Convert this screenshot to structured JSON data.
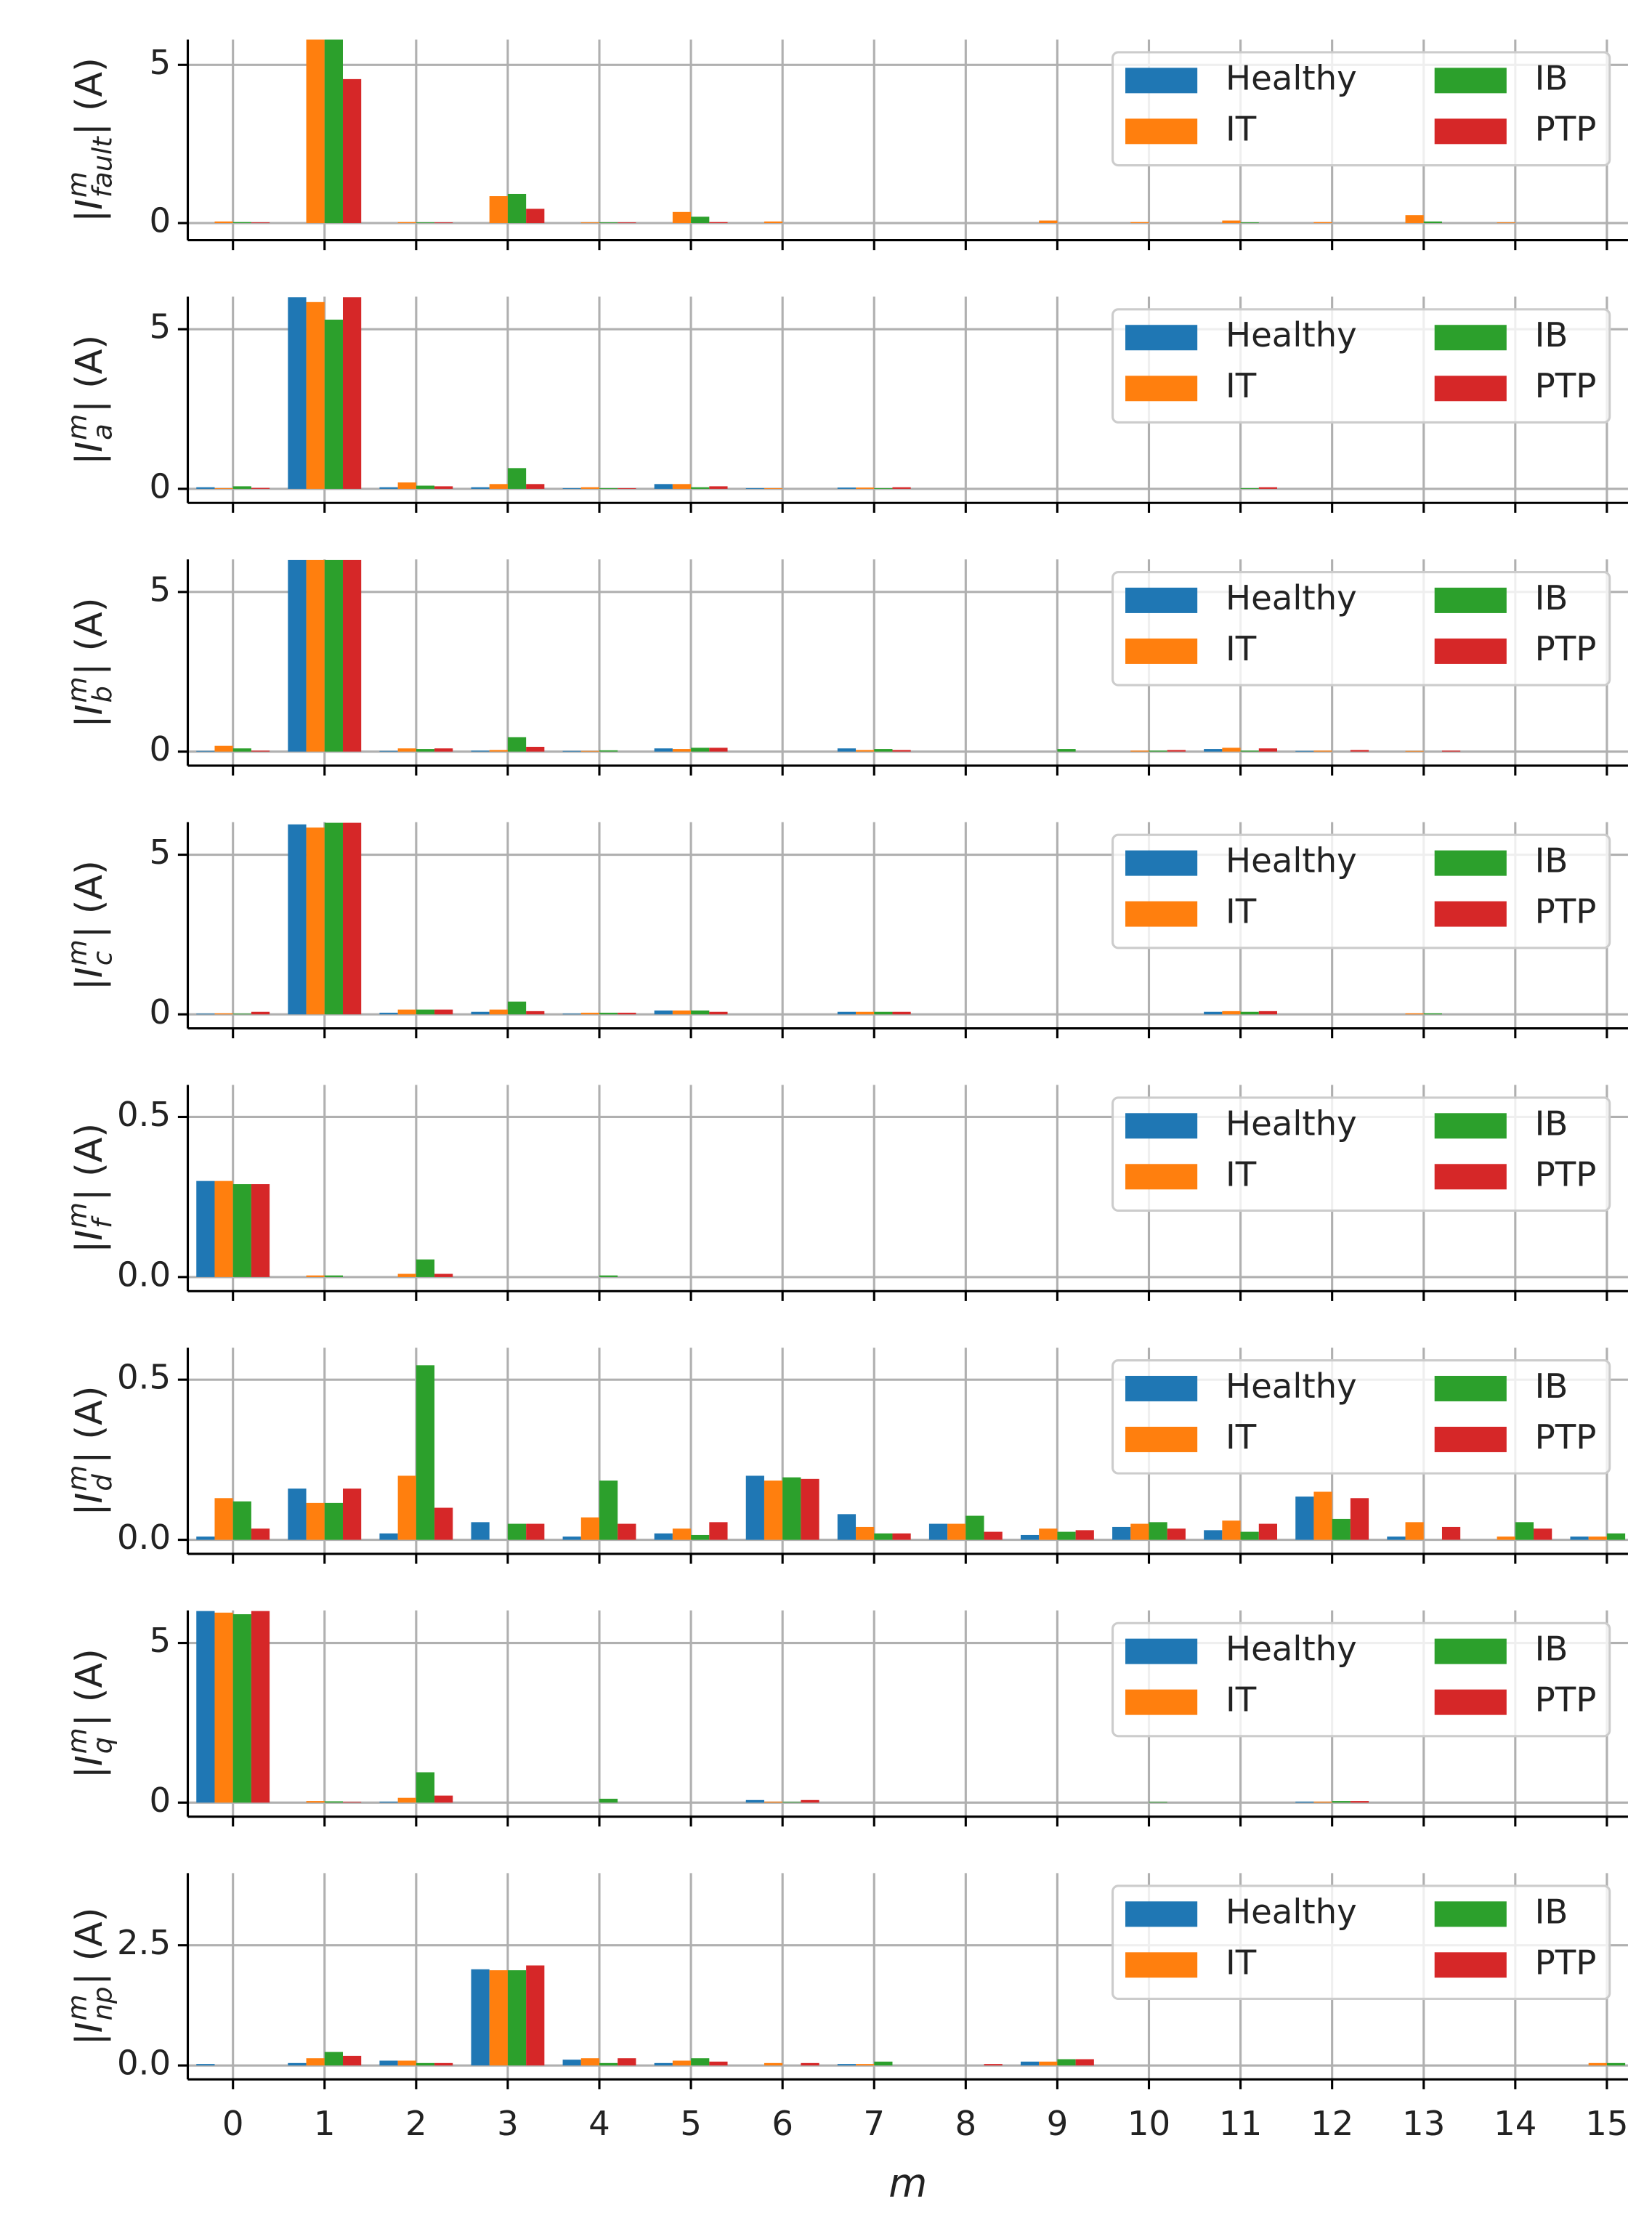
{
  "chart_data": [
    {
      "type": "bar",
      "ylabel": {
        "pre": "|",
        "sym": "I",
        "sup": "m",
        "sub": "fault",
        "post": "| (A)"
      },
      "ylim": [
        -0.54,
        5.8
      ],
      "yticks": [
        0,
        5
      ],
      "grid": true,
      "legend": "upper right",
      "series": [
        {
          "name": "Healthy",
          "color": "#1f77b4",
          "values": [
            0,
            0,
            0,
            0,
            0,
            0,
            0,
            0,
            0,
            0,
            0,
            0,
            0,
            0,
            0,
            0
          ]
        },
        {
          "name": "IT",
          "color": "#ff7f0e",
          "values": [
            0.05,
            6,
            0.03,
            0.85,
            0.02,
            0.35,
            0.05,
            0,
            0,
            0.08,
            0.03,
            0.08,
            0.03,
            0.25,
            0.02,
            0
          ]
        },
        {
          "name": "IB",
          "color": "#2ca02c",
          "values": [
            0.03,
            6,
            0.02,
            0.92,
            0.02,
            0.2,
            0,
            0,
            0,
            0,
            0,
            0.02,
            0,
            0.05,
            0,
            0
          ]
        },
        {
          "name": "PTP",
          "color": "#d62728",
          "values": [
            0.02,
            4.55,
            0.02,
            0.45,
            0.02,
            0.03,
            0,
            0,
            0,
            0,
            0,
            0,
            0,
            0,
            0,
            0
          ]
        }
      ]
    },
    {
      "type": "bar",
      "ylabel": {
        "pre": "|",
        "sym": "I",
        "sup": "m",
        "sub": "a",
        "post": "| (A)"
      },
      "ylim": [
        -0.44,
        6.02
      ],
      "yticks": [
        0,
        5
      ],
      "grid": true,
      "legend": "upper right",
      "series": [
        {
          "name": "Healthy",
          "color": "#1f77b4",
          "values": [
            0.05,
            6,
            0.05,
            0.05,
            0.02,
            0.15,
            0.02,
            0.04,
            0,
            0,
            0,
            0,
            0,
            0,
            0,
            0
          ]
        },
        {
          "name": "IT",
          "color": "#ff7f0e",
          "values": [
            0.02,
            5.85,
            0.2,
            0.15,
            0.05,
            0.15,
            0.02,
            0.04,
            0,
            0,
            0,
            0,
            0,
            0,
            0,
            0
          ]
        },
        {
          "name": "IB",
          "color": "#2ca02c",
          "values": [
            0.08,
            5.3,
            0.1,
            0.65,
            0.02,
            0.05,
            0,
            0.02,
            0,
            0,
            0,
            0.02,
            0,
            0,
            0,
            0
          ]
        },
        {
          "name": "PTP",
          "color": "#d62728",
          "values": [
            0.03,
            6,
            0.08,
            0.15,
            0.02,
            0.08,
            0,
            0.05,
            0,
            0,
            0,
            0.05,
            0,
            0,
            0,
            0
          ]
        }
      ]
    },
    {
      "type": "bar",
      "ylabel": {
        "pre": "|",
        "sym": "I",
        "sup": "m",
        "sub": "b",
        "post": "| (A)"
      },
      "ylim": [
        -0.44,
        6.02
      ],
      "yticks": [
        0,
        5
      ],
      "grid": true,
      "legend": "upper right",
      "series": [
        {
          "name": "Healthy",
          "color": "#1f77b4",
          "values": [
            0.02,
            6,
            0.02,
            0.03,
            0.02,
            0.1,
            0,
            0.1,
            0,
            0,
            0,
            0.08,
            0.02,
            0,
            0,
            0
          ]
        },
        {
          "name": "IT",
          "color": "#ff7f0e",
          "values": [
            0.18,
            6,
            0.1,
            0.05,
            0.02,
            0.08,
            0,
            0.05,
            0,
            0,
            0.03,
            0.12,
            0.03,
            0.02,
            0,
            0
          ]
        },
        {
          "name": "IB",
          "color": "#2ca02c",
          "values": [
            0.1,
            6,
            0.08,
            0.45,
            0.04,
            0.12,
            0,
            0.08,
            0,
            0.08,
            0.03,
            0.03,
            0,
            0,
            0,
            0
          ]
        },
        {
          "name": "PTP",
          "color": "#d62728",
          "values": [
            0.03,
            6,
            0.1,
            0.15,
            0,
            0.12,
            0,
            0.05,
            0,
            0,
            0.05,
            0.1,
            0.05,
            0.03,
            0,
            0
          ]
        }
      ]
    },
    {
      "type": "bar",
      "ylabel": {
        "pre": "|",
        "sym": "I",
        "sup": "m",
        "sub": "c",
        "post": "| (A)"
      },
      "ylim": [
        -0.44,
        6.02
      ],
      "yticks": [
        0,
        5
      ],
      "grid": true,
      "legend": "upper right",
      "series": [
        {
          "name": "Healthy",
          "color": "#1f77b4",
          "values": [
            0.02,
            5.95,
            0.05,
            0.08,
            0.02,
            0.12,
            0,
            0.08,
            0,
            0,
            0,
            0.08,
            0,
            0,
            0,
            0
          ]
        },
        {
          "name": "IT",
          "color": "#ff7f0e",
          "values": [
            0.03,
            5.85,
            0.15,
            0.15,
            0.05,
            0.12,
            0,
            0.08,
            0,
            0,
            0,
            0.1,
            0,
            0.03,
            0,
            0
          ]
        },
        {
          "name": "IB",
          "color": "#2ca02c",
          "values": [
            0.02,
            6,
            0.15,
            0.4,
            0.05,
            0.12,
            0,
            0.08,
            0,
            0,
            0,
            0.08,
            0,
            0.03,
            0,
            0
          ]
        },
        {
          "name": "PTP",
          "color": "#d62728",
          "values": [
            0.08,
            6,
            0.15,
            0.1,
            0.05,
            0.08,
            0,
            0.08,
            0,
            0,
            0,
            0.1,
            0,
            0,
            0,
            0
          ]
        }
      ]
    },
    {
      "type": "bar",
      "ylabel": {
        "pre": "|",
        "sym": "I",
        "sup": "m",
        "sub": "f",
        "post": "| (A)"
      },
      "ylim": [
        -0.044,
        0.6
      ],
      "yticks": [
        {
          "value": 0,
          "label": "0.0"
        },
        0.5
      ],
      "grid": true,
      "legend": "upper right",
      "series": [
        {
          "name": "Healthy",
          "color": "#1f77b4",
          "values": [
            0.3,
            0,
            0,
            0,
            0,
            0,
            0,
            0,
            0,
            0,
            0,
            0,
            0,
            0,
            0,
            0
          ]
        },
        {
          "name": "IT",
          "color": "#ff7f0e",
          "values": [
            0.3,
            0.005,
            0.01,
            0,
            0,
            0,
            0,
            0,
            0,
            0,
            0,
            0,
            0,
            0,
            0,
            0
          ]
        },
        {
          "name": "IB",
          "color": "#2ca02c",
          "values": [
            0.29,
            0.005,
            0.055,
            0,
            0.005,
            0,
            0,
            0,
            0,
            0,
            0,
            0,
            0,
            0,
            0,
            0
          ]
        },
        {
          "name": "PTP",
          "color": "#d62728",
          "values": [
            0.29,
            0,
            0.01,
            0,
            0,
            0,
            0,
            0,
            0,
            0,
            0,
            0,
            0,
            0,
            0,
            0
          ]
        }
      ]
    },
    {
      "type": "bar",
      "ylabel": {
        "pre": "|",
        "sym": "I",
        "sup": "m",
        "sub": "d",
        "post": "| (A)"
      },
      "ylim": [
        -0.044,
        0.6
      ],
      "yticks": [
        {
          "value": 0,
          "label": "0.0"
        },
        0.5
      ],
      "grid": true,
      "legend": "upper right",
      "series": [
        {
          "name": "Healthy",
          "color": "#1f77b4",
          "values": [
            0.01,
            0.16,
            0.02,
            0.055,
            0.01,
            0.02,
            0.2,
            0.08,
            0.05,
            0.015,
            0.04,
            0.03,
            0.135,
            0.01,
            0,
            0.01
          ]
        },
        {
          "name": "IT",
          "color": "#ff7f0e",
          "values": [
            0.13,
            0.115,
            0.2,
            0,
            0.07,
            0.035,
            0.185,
            0.04,
            0.05,
            0.035,
            0.05,
            0.06,
            0.15,
            0.055,
            0.01,
            0.01
          ]
        },
        {
          "name": "IB",
          "color": "#2ca02c",
          "values": [
            0.12,
            0.115,
            0.545,
            0.05,
            0.185,
            0.015,
            0.195,
            0.02,
            0.075,
            0.025,
            0.055,
            0.025,
            0.065,
            0,
            0.055,
            0.02
          ]
        },
        {
          "name": "PTP",
          "color": "#d62728",
          "values": [
            0.035,
            0.16,
            0.1,
            0.05,
            0.05,
            0.055,
            0.19,
            0.02,
            0.025,
            0.03,
            0.035,
            0.05,
            0.13,
            0.04,
            0.035,
            0
          ]
        }
      ]
    },
    {
      "type": "bar",
      "ylabel": {
        "pre": "|",
        "sym": "I",
        "sup": "m",
        "sub": "q",
        "post": "| (A)"
      },
      "ylim": [
        -0.44,
        6.02
      ],
      "yticks": [
        0,
        5
      ],
      "grid": true,
      "legend": "upper right",
      "series": [
        {
          "name": "Healthy",
          "color": "#1f77b4",
          "values": [
            6,
            0,
            0.03,
            0,
            0,
            0,
            0.08,
            0,
            0,
            0,
            0,
            0,
            0.03,
            0,
            0,
            0
          ]
        },
        {
          "name": "IT",
          "color": "#ff7f0e",
          "values": [
            5.95,
            0.05,
            0.15,
            0,
            0,
            0,
            0.03,
            0,
            0,
            0,
            0,
            0,
            0.03,
            0,
            0,
            0
          ]
        },
        {
          "name": "IB",
          "color": "#2ca02c",
          "values": [
            5.9,
            0.04,
            0.95,
            0,
            0.12,
            0,
            0.02,
            0,
            0,
            0,
            0.02,
            0,
            0.05,
            0,
            0,
            0
          ]
        },
        {
          "name": "PTP",
          "color": "#d62728",
          "values": [
            6,
            0.02,
            0.22,
            0,
            0,
            0,
            0.08,
            0,
            0,
            0,
            0,
            0,
            0.05,
            0,
            0,
            0
          ]
        }
      ]
    },
    {
      "type": "bar",
      "ylabel": {
        "pre": "|",
        "sym": "I",
        "sup": "m",
        "sub": "np",
        "post": "| (A)"
      },
      "xlabel": "m",
      "categories": [
        "0",
        "1",
        "2",
        "3",
        "4",
        "5",
        "6",
        "7",
        "8",
        "9",
        "10",
        "11",
        "12",
        "13",
        "14",
        "15"
      ],
      "ylim": [
        -0.29,
        4.0
      ],
      "yticks": [
        {
          "value": 0,
          "label": "0.0"
        },
        2.5
      ],
      "grid": true,
      "legend": "upper right",
      "series": [
        {
          "name": "Healthy",
          "color": "#1f77b4",
          "values": [
            0.03,
            0.05,
            0.1,
            2,
            0.12,
            0.05,
            0,
            0.03,
            0,
            0.08,
            0,
            0,
            0,
            0,
            0,
            0
          ]
        },
        {
          "name": "IT",
          "color": "#ff7f0e",
          "values": [
            0,
            0.15,
            0.1,
            1.98,
            0.15,
            0.1,
            0.05,
            0.03,
            0,
            0.08,
            0,
            0,
            0,
            0,
            0,
            0.05
          ]
        },
        {
          "name": "IB",
          "color": "#2ca02c",
          "values": [
            0,
            0.28,
            0.05,
            1.98,
            0.05,
            0.15,
            0,
            0.08,
            0,
            0.13,
            0,
            0,
            0,
            0,
            0,
            0.05
          ]
        },
        {
          "name": "PTP",
          "color": "#d62728",
          "values": [
            0,
            0.2,
            0.05,
            2.08,
            0.15,
            0.08,
            0.05,
            0,
            0.03,
            0.13,
            0,
            0,
            0,
            0,
            0,
            0
          ]
        }
      ]
    }
  ]
}
